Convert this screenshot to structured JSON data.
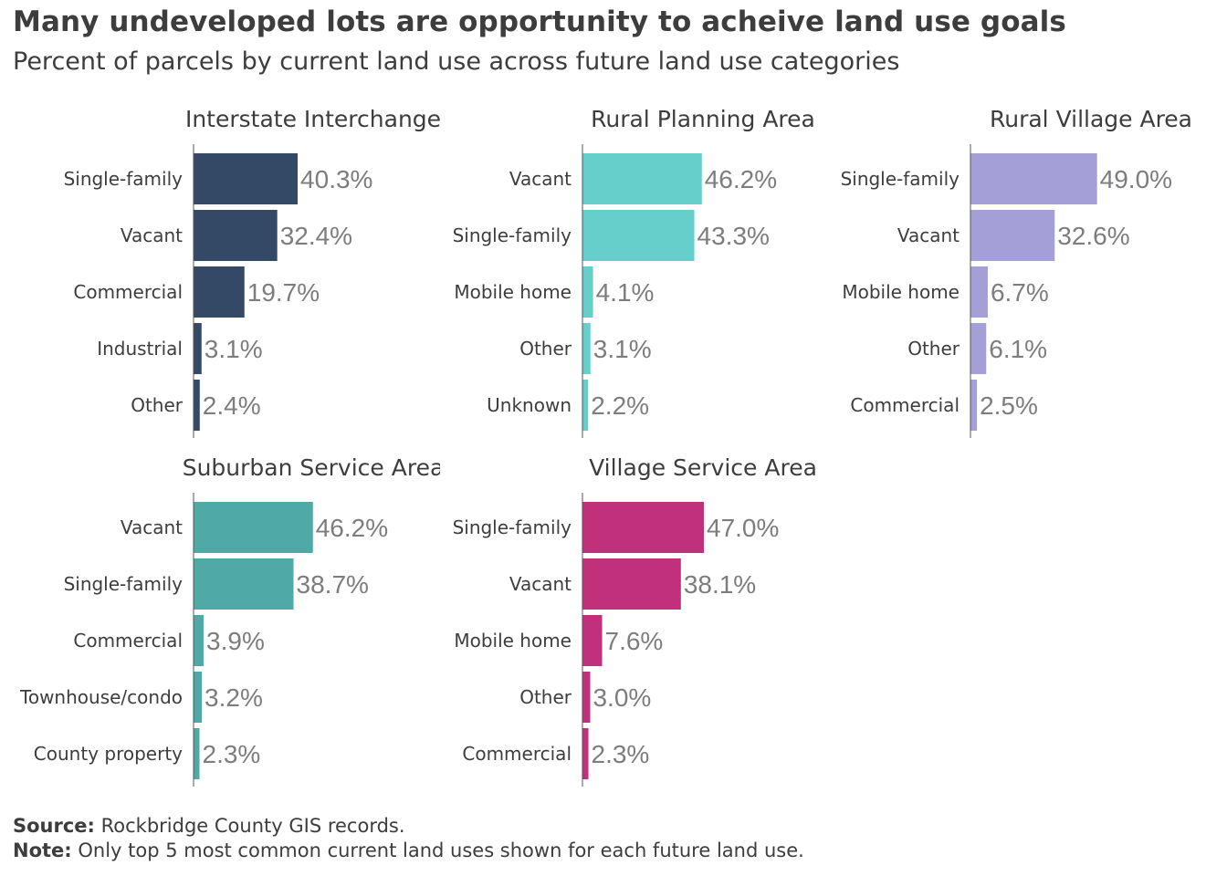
{
  "title": "Many undeveloped lots are opportunity to acheive land use goals",
  "subtitle": "Percent of parcels by current land use across future land use categories",
  "footer": {
    "source_label": "Source:",
    "source_text": "Rockbridge County GIS records.",
    "note_label": "Note:",
    "note_text": "Only top 5 most common current land uses shown for each future land use."
  },
  "chart_data": [
    {
      "type": "bar",
      "orientation": "horizontal",
      "title": "Interstate Interchange",
      "color": "#334966",
      "categories": [
        "Single-family",
        "Vacant",
        "Commercial",
        "Industrial",
        "Other"
      ],
      "values": [
        40.3,
        32.4,
        19.7,
        3.1,
        2.4
      ],
      "labels": [
        "40.3%",
        "32.4%",
        "19.7%",
        "3.1%",
        "2.4%"
      ],
      "xlim": [
        0,
        100
      ]
    },
    {
      "type": "bar",
      "orientation": "horizontal",
      "title": "Rural Planning Area",
      "color": "#66cfcc",
      "categories": [
        "Vacant",
        "Single-family",
        "Mobile home",
        "Other",
        "Unknown"
      ],
      "values": [
        46.2,
        43.3,
        4.1,
        3.1,
        2.2
      ],
      "labels": [
        "46.2%",
        "43.3%",
        "4.1%",
        "3.1%",
        "2.2%"
      ],
      "xlim": [
        0,
        100
      ]
    },
    {
      "type": "bar",
      "orientation": "horizontal",
      "title": "Rural Village Area",
      "color": "#a49fd6",
      "categories": [
        "Single-family",
        "Vacant",
        "Mobile home",
        "Other",
        "Commercial"
      ],
      "values": [
        49.0,
        32.6,
        6.7,
        6.1,
        2.5
      ],
      "labels": [
        "49.0%",
        "32.6%",
        "6.7%",
        "6.1%",
        "2.5%"
      ],
      "xlim": [
        0,
        100
      ]
    },
    {
      "type": "bar",
      "orientation": "horizontal",
      "title": "Suburban Service Area",
      "color": "#4fa9a7",
      "categories": [
        "Vacant",
        "Single-family",
        "Commercial",
        "Townhouse/condo",
        "County property"
      ],
      "values": [
        46.2,
        38.7,
        3.9,
        3.2,
        2.3
      ],
      "labels": [
        "46.2%",
        "38.7%",
        "3.9%",
        "3.2%",
        "2.3%"
      ],
      "xlim": [
        0,
        100
      ]
    },
    {
      "type": "bar",
      "orientation": "horizontal",
      "title": "Village Service Area",
      "color": "#c1307b",
      "categories": [
        "Single-family",
        "Vacant",
        "Mobile home",
        "Other",
        "Commercial"
      ],
      "values": [
        47.0,
        38.1,
        7.6,
        3.0,
        2.3
      ],
      "labels": [
        "47.0%",
        "38.1%",
        "7.6%",
        "3.0%",
        "2.3%"
      ],
      "xlim": [
        0,
        100
      ]
    }
  ]
}
